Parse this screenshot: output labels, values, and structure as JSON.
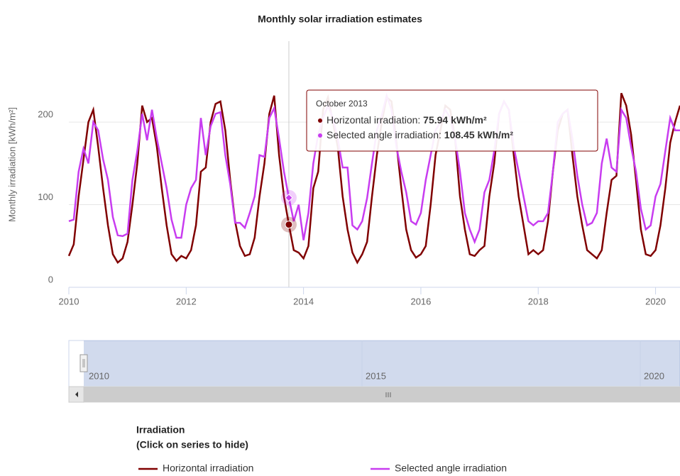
{
  "chart_data": {
    "type": "line",
    "title": "Monthly solar irradiation estimates",
    "y_label": "Monthly irradiation [kWh/m²]",
    "x": [
      "2010-01",
      "2010-02",
      "2010-03",
      "2010-04",
      "2010-05",
      "2010-06",
      "2010-07",
      "2010-08",
      "2010-09",
      "2010-10",
      "2010-11",
      "2010-12",
      "2011-01",
      "2011-02",
      "2011-03",
      "2011-04",
      "2011-05",
      "2011-06",
      "2011-07",
      "2011-08",
      "2011-09",
      "2011-10",
      "2011-11",
      "2011-12",
      "2012-01",
      "2012-02",
      "2012-03",
      "2012-04",
      "2012-05",
      "2012-06",
      "2012-07",
      "2012-08",
      "2012-09",
      "2012-10",
      "2012-11",
      "2012-12",
      "2013-01",
      "2013-02",
      "2013-03",
      "2013-04",
      "2013-05",
      "2013-06",
      "2013-07",
      "2013-08",
      "2013-09",
      "2013-10",
      "2013-11",
      "2013-12",
      "2014-01",
      "2014-02",
      "2014-03",
      "2014-04",
      "2014-05",
      "2014-06",
      "2014-07",
      "2014-08",
      "2014-09",
      "2014-10",
      "2014-11",
      "2014-12",
      "2015-01",
      "2015-02",
      "2015-03",
      "2015-04",
      "2015-05",
      "2015-06",
      "2015-07",
      "2015-08",
      "2015-09",
      "2015-10",
      "2015-11",
      "2015-12",
      "2016-01",
      "2016-02",
      "2016-03",
      "2016-04",
      "2016-05",
      "2016-06",
      "2016-07",
      "2016-08",
      "2016-09",
      "2016-10",
      "2016-11",
      "2016-12",
      "2017-01",
      "2017-02",
      "2017-03",
      "2017-04",
      "2017-05",
      "2017-06",
      "2017-07",
      "2017-08",
      "2017-09",
      "2017-10",
      "2017-11",
      "2017-12",
      "2018-01",
      "2018-02",
      "2018-03",
      "2018-04",
      "2018-05",
      "2018-06",
      "2018-07",
      "2018-08",
      "2018-09",
      "2018-10",
      "2018-11",
      "2018-12",
      "2019-01",
      "2019-02",
      "2019-03",
      "2019-04",
      "2019-05",
      "2019-06",
      "2019-07",
      "2019-08",
      "2019-09",
      "2019-10",
      "2019-11",
      "2019-12",
      "2020-01",
      "2020-02",
      "2020-03",
      "2020-04",
      "2020-05",
      "2020-06"
    ],
    "series": [
      {
        "name": "Horizontal irradiation",
        "color": "#800000",
        "values": [
          38,
          52,
          110,
          155,
          200,
          215,
          170,
          120,
          75,
          40,
          30,
          35,
          55,
          100,
          150,
          220,
          200,
          205,
          170,
          120,
          75,
          40,
          32,
          38,
          35,
          45,
          75,
          140,
          145,
          200,
          222,
          225,
          190,
          130,
          80,
          50,
          38,
          40,
          60,
          110,
          150,
          210,
          232,
          160,
          110,
          75.94,
          45,
          42,
          35,
          50,
          120,
          140,
          215,
          230,
          200,
          170,
          110,
          70,
          42,
          30,
          40,
          55,
          110,
          160,
          200,
          230,
          225,
          175,
          120,
          70,
          45,
          36,
          40,
          50,
          100,
          160,
          190,
          220,
          215,
          180,
          110,
          70,
          40,
          38,
          45,
          50,
          110,
          150,
          210,
          225,
          215,
          160,
          110,
          75,
          40,
          45,
          40,
          45,
          80,
          140,
          190,
          210,
          215,
          160,
          110,
          75,
          45,
          40,
          35,
          45,
          90,
          130,
          135,
          235,
          220,
          185,
          130,
          70,
          40,
          38,
          45,
          75,
          120,
          175,
          200,
          220
        ]
      },
      {
        "name": "Selected angle irradiation",
        "color": "#c83cf0",
        "values": [
          80,
          82,
          140,
          168,
          150,
          200,
          190,
          155,
          130,
          85,
          63,
          62,
          65,
          130,
          165,
          210,
          178,
          215,
          180,
          150,
          120,
          82,
          60,
          60,
          100,
          120,
          130,
          205,
          160,
          195,
          210,
          212,
          160,
          125,
          78,
          78,
          72,
          90,
          110,
          160,
          158,
          205,
          217,
          180,
          140,
          108.45,
          80,
          100,
          57,
          90,
          150,
          185,
          205,
          220,
          205,
          180,
          145,
          145,
          75,
          70,
          80,
          108,
          150,
          190,
          208,
          232,
          215,
          170,
          140,
          115,
          80,
          76,
          90,
          130,
          160,
          190,
          200,
          215,
          205,
          180,
          140,
          90,
          70,
          55,
          70,
          115,
          130,
          165,
          210,
          225,
          215,
          170,
          140,
          110,
          80,
          75,
          80,
          80,
          90,
          140,
          200,
          210,
          215,
          180,
          135,
          100,
          75,
          78,
          90,
          150,
          180,
          145,
          140,
          215,
          205,
          170,
          140,
          95,
          70,
          75,
          110,
          125,
          165,
          205,
          190,
          190
        ]
      }
    ],
    "xlim": [
      "2010-01",
      "2020-06"
    ],
    "xticks": [
      2010,
      2012,
      2014,
      2016,
      2018,
      2020
    ],
    "ylim": [
      0,
      298
    ],
    "yticks": [
      0,
      100,
      200
    ],
    "grid": true,
    "tooltip": {
      "title": "October 2013",
      "index": 45,
      "items": [
        {
          "label": "Horizontal irradiation: ",
          "value": "75.94 kWh/m²"
        },
        {
          "label": "Selected angle irradiation: ",
          "value": "108.45 kWh/m²"
        }
      ]
    },
    "navigator": {
      "labels": [
        "2010",
        "2015",
        "2020"
      ]
    },
    "legend": {
      "title": "Irradiation",
      "subtitle": "(Click on series to hide)"
    }
  }
}
